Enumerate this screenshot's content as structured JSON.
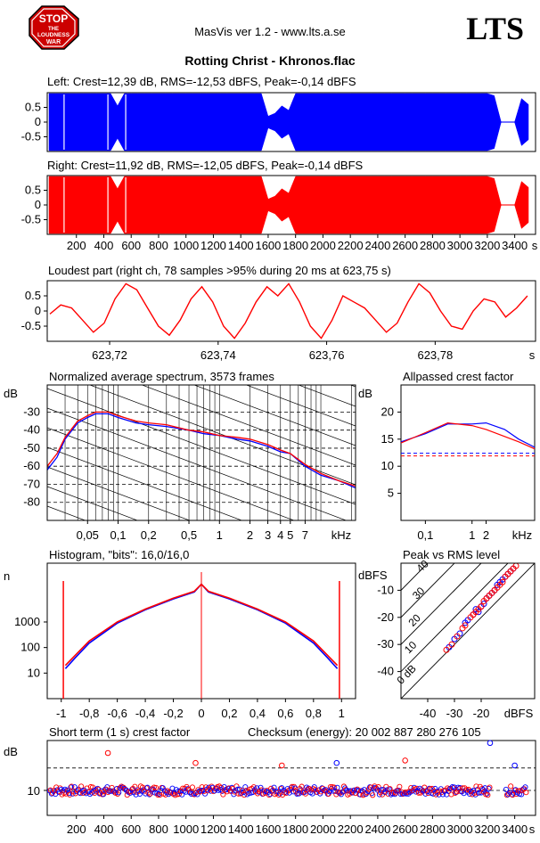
{
  "header": {
    "app_title": "MasVis ver 1.2 - www.lts.a.se",
    "brand": "LTS",
    "track_title": "Rotting Christ - Khronos.flac",
    "logo": {
      "icon": "stop-loudness-war-sign",
      "text": [
        "STOP",
        "THE",
        "LOUDNESS",
        "WAR"
      ],
      "color": "#cc0000"
    }
  },
  "colors": {
    "left": "#0000ff",
    "right": "#ff0000",
    "axis": "#000000",
    "grid": "#000000"
  },
  "chart_data": [
    {
      "id": "left-waveform",
      "type": "area",
      "title": "Left: Crest=12,39 dB, RMS=-12,53 dBFS, Peak=-0,14 dBFS",
      "ytick_labels": [
        "0.5",
        "0",
        "-0.5"
      ],
      "yticks": [
        0.5,
        0,
        -0.5
      ],
      "ylim": [
        -1,
        1
      ],
      "xlim": [
        0,
        3500
      ],
      "color": "#0000ff",
      "envelope": {
        "x": [
          0,
          50,
          100,
          150,
          200,
          250,
          300,
          350,
          400,
          450,
          500,
          550,
          600,
          650,
          700,
          750,
          800,
          850,
          900,
          950,
          1000,
          1050,
          1100,
          1150,
          1200,
          1250,
          1300,
          1350,
          1400,
          1450,
          1500,
          1550,
          1600,
          1650,
          1700,
          1750,
          1800,
          1850,
          1900,
          1950,
          2000,
          2050,
          2100,
          2150,
          2200,
          2250,
          2300,
          2350,
          2400,
          2450,
          2500,
          2550,
          2600,
          2650,
          2700,
          2750,
          2800,
          2850,
          2900,
          2950,
          3000,
          3050,
          3100,
          3150,
          3200,
          3250,
          3300,
          3350,
          3400,
          3450,
          3500
        ],
        "peak": [
          0.97,
          0.97,
          0.97,
          0.97,
          0.97,
          0.97,
          0.97,
          0.97,
          0.97,
          0.97,
          0.55,
          0.97,
          0.97,
          0.97,
          0.97,
          0.97,
          0.97,
          0.97,
          0.97,
          0.97,
          0.97,
          0.97,
          0.97,
          0.97,
          0.97,
          0.97,
          0.97,
          0.97,
          0.97,
          0.97,
          0.97,
          0.97,
          0.2,
          0.3,
          0.55,
          0.4,
          0.97,
          0.97,
          0.97,
          0.97,
          0.97,
          0.97,
          0.97,
          0.97,
          0.97,
          0.97,
          0.97,
          0.97,
          0.97,
          0.97,
          0.97,
          0.97,
          0.97,
          0.97,
          0.97,
          0.97,
          0.97,
          0.97,
          0.97,
          0.97,
          0.97,
          0.97,
          0.97,
          0.97,
          0.97,
          0.9,
          0.01,
          0.01,
          0.01,
          0.8,
          0.6
        ]
      }
    },
    {
      "id": "right-waveform",
      "type": "area",
      "title": "Right: Crest=11,92 dB, RMS=-12,05 dBFS, Peak=-0,14 dBFS",
      "ytick_labels": [
        "0.5",
        "0",
        "-0.5"
      ],
      "yticks": [
        0.5,
        0,
        -0.5
      ],
      "ylim": [
        -1,
        1
      ],
      "xlim": [
        0,
        3500
      ],
      "xticks": [
        200,
        400,
        600,
        800,
        1000,
        1200,
        1400,
        1600,
        1800,
        2000,
        2200,
        2400,
        2600,
        2800,
        3000,
        3200,
        3400
      ],
      "xtick_labels": [
        "200",
        "400",
        "600",
        "800",
        "1000",
        "1200",
        "1400",
        "1600",
        "1800",
        "2000",
        "2200",
        "2400",
        "2600",
        "2800",
        "3000",
        "3200",
        "3400"
      ],
      "xlabel": "s",
      "color": "#ff0000",
      "envelope": {
        "x": [
          0,
          50,
          100,
          150,
          200,
          250,
          300,
          350,
          400,
          450,
          500,
          550,
          600,
          650,
          700,
          750,
          800,
          850,
          900,
          950,
          1000,
          1050,
          1100,
          1150,
          1200,
          1250,
          1300,
          1350,
          1400,
          1450,
          1500,
          1550,
          1600,
          1650,
          1700,
          1750,
          1800,
          1850,
          1900,
          1950,
          2000,
          2050,
          2100,
          2150,
          2200,
          2250,
          2300,
          2350,
          2400,
          2450,
          2500,
          2550,
          2600,
          2650,
          2700,
          2750,
          2800,
          2850,
          2900,
          2950,
          3000,
          3050,
          3100,
          3150,
          3200,
          3250,
          3300,
          3350,
          3400,
          3450,
          3500
        ],
        "peak": [
          0.97,
          0.97,
          0.97,
          0.97,
          0.97,
          0.97,
          0.97,
          0.97,
          0.97,
          0.97,
          0.55,
          0.97,
          0.97,
          0.97,
          0.97,
          0.97,
          0.97,
          0.97,
          0.97,
          0.97,
          0.97,
          0.97,
          0.97,
          0.97,
          0.97,
          0.97,
          0.97,
          0.97,
          0.97,
          0.97,
          0.97,
          0.97,
          0.2,
          0.3,
          0.55,
          0.4,
          0.97,
          0.97,
          0.97,
          0.97,
          0.97,
          0.97,
          0.97,
          0.97,
          0.97,
          0.97,
          0.97,
          0.97,
          0.97,
          0.97,
          0.97,
          0.97,
          0.97,
          0.97,
          0.97,
          0.97,
          0.97,
          0.97,
          0.97,
          0.97,
          0.97,
          0.97,
          0.97,
          0.97,
          0.97,
          0.9,
          0.01,
          0.01,
          0.01,
          0.8,
          0.6
        ]
      }
    },
    {
      "id": "loudest-part",
      "type": "line",
      "title": "Loudest part (right ch, 78 samples >95% during 20 ms at 623,75 s)",
      "ytick_labels": [
        "0.5",
        "0",
        "-0.5"
      ],
      "yticks": [
        0.5,
        0,
        -0.5
      ],
      "ylim": [
        -1,
        1
      ],
      "xlim": [
        623.7085,
        623.7985
      ],
      "xticks": [
        623.72,
        623.74,
        623.76,
        623.78
      ],
      "xtick_labels": [
        "623,72",
        "623,74",
        "623,76",
        "623,78"
      ],
      "xlabel": "s",
      "color": "#ff0000",
      "x": [
        623.709,
        623.711,
        623.713,
        623.715,
        623.717,
        623.719,
        623.721,
        623.723,
        623.725,
        623.727,
        623.729,
        623.731,
        623.733,
        623.735,
        623.737,
        623.739,
        623.741,
        623.743,
        623.745,
        623.747,
        623.749,
        623.751,
        623.753,
        623.755,
        623.757,
        623.759,
        623.761,
        623.763,
        623.765,
        623.767,
        623.769,
        623.771,
        623.773,
        623.775,
        623.777,
        623.779,
        623.781,
        623.783,
        623.785,
        623.787,
        623.789,
        623.791,
        623.793,
        623.795,
        623.797
      ],
      "y": [
        -0.1,
        0.2,
        0.1,
        -0.3,
        -0.7,
        -0.4,
        0.4,
        0.9,
        0.7,
        0.1,
        -0.5,
        -0.8,
        -0.3,
        0.4,
        0.8,
        0.3,
        -0.5,
        -0.9,
        -0.4,
        0.3,
        0.8,
        0.5,
        0.9,
        0.3,
        -0.5,
        -0.9,
        -0.3,
        0.5,
        0.3,
        0.1,
        -0.3,
        -0.7,
        -0.4,
        0.3,
        0.9,
        0.6,
        0.0,
        -0.5,
        -0.6,
        0.0,
        0.4,
        0.3,
        -0.2,
        0.1,
        0.5
      ]
    },
    {
      "id": "normalized-spectrum",
      "type": "line",
      "title": "Normalized average spectrum, 3573 frames",
      "ylabel": "dB",
      "xlabel": "kHz",
      "ylim": [
        -90,
        -15
      ],
      "yticks": [
        -30,
        -40,
        -50,
        -60,
        -70,
        -80
      ],
      "ytick_labels": [
        "-30",
        "-40",
        "-50",
        "-60",
        "-70",
        "-80"
      ],
      "xscale": "log",
      "xlim": [
        0.02,
        22
      ],
      "xticks": [
        0.05,
        0.1,
        0.2,
        0.5,
        1,
        2,
        3,
        4,
        5,
        7
      ],
      "xtick_labels": [
        "0,05",
        "0,1",
        "0,2",
        "0,5",
        "1",
        "2",
        "3",
        "4",
        "5",
        "7"
      ],
      "grid": true,
      "series": [
        {
          "color": "#0000ff",
          "x": [
            0.02,
            0.025,
            0.03,
            0.04,
            0.05,
            0.06,
            0.08,
            0.1,
            0.15,
            0.2,
            0.3,
            0.5,
            0.7,
            1,
            1.5,
            2,
            3,
            4,
            5,
            7,
            10,
            15,
            22
          ],
          "y": [
            -62,
            -55,
            -45,
            -36,
            -33,
            -31,
            -31,
            -33,
            -36,
            -37,
            -38,
            -40,
            -42,
            -43,
            -45,
            -46,
            -49,
            -52,
            -53,
            -60,
            -65,
            -68,
            -72
          ]
        },
        {
          "color": "#ff0000",
          "x": [
            0.02,
            0.025,
            0.03,
            0.04,
            0.05,
            0.06,
            0.08,
            0.1,
            0.15,
            0.2,
            0.3,
            0.5,
            0.7,
            1,
            1.5,
            2,
            3,
            4,
            5,
            7,
            10,
            15,
            22
          ],
          "y": [
            -60,
            -53,
            -44,
            -35,
            -32,
            -30,
            -30,
            -32,
            -35,
            -36,
            -37,
            -40,
            -41,
            -43,
            -44,
            -45,
            -48,
            -51,
            -53,
            -59,
            -64,
            -68,
            -71
          ]
        }
      ]
    },
    {
      "id": "allpassed-crest",
      "type": "line",
      "title": "Allpassed crest factor",
      "ylabel": "dB",
      "xlabel": "kHz",
      "ylim": [
        0,
        25
      ],
      "yticks": [
        5,
        10,
        15,
        20
      ],
      "ytick_labels": [
        "5",
        "10",
        "15",
        "20"
      ],
      "xscale": "log",
      "xlim": [
        0.03,
        22
      ],
      "xticks": [
        0.1,
        1,
        2
      ],
      "xtick_labels": [
        "0,1",
        "1",
        "2"
      ],
      "reference_lines": [
        {
          "y": 12.4,
          "color": "#0000ff"
        },
        {
          "y": 11.9,
          "color": "#ff0000"
        }
      ],
      "series": [
        {
          "color": "#0000ff",
          "x": [
            0.03,
            0.1,
            0.3,
            1,
            2,
            5,
            10,
            22
          ],
          "y": [
            14.5,
            16,
            17.8,
            17.8,
            18,
            16.8,
            15,
            13.5
          ]
        },
        {
          "color": "#ff0000",
          "x": [
            0.03,
            0.1,
            0.3,
            1,
            2,
            5,
            10,
            22
          ],
          "y": [
            14.3,
            16.2,
            18,
            17.5,
            16.8,
            15.5,
            14.5,
            13.2
          ]
        }
      ]
    },
    {
      "id": "histogram",
      "type": "line",
      "title": "Histogram, \"bits\": 16,0/16,0",
      "ylabel": "n",
      "yscale": "log",
      "ylim": [
        1,
        200000
      ],
      "yticks": [
        10,
        100,
        1000
      ],
      "ytick_labels": [
        "10",
        "100",
        "1000"
      ],
      "xlim": [
        -1.1,
        1.1
      ],
      "xticks": [
        -1,
        -0.8,
        -0.6,
        -0.4,
        -0.2,
        0,
        0.2,
        0.4,
        0.6,
        0.8,
        1
      ],
      "xtick_labels": [
        "-1",
        "-0,8",
        "-0,6",
        "-0,4",
        "-0,2",
        "0",
        "0,2",
        "0,4",
        "0,6",
        "0,8",
        "1"
      ],
      "series": [
        {
          "color": "#0000ff",
          "x": [
            -0.97,
            -0.9,
            -0.8,
            -0.6,
            -0.4,
            -0.2,
            -0.05,
            0,
            0.05,
            0.2,
            0.4,
            0.6,
            0.8,
            0.9,
            0.97
          ],
          "y": [
            15,
            40,
            150,
            900,
            3000,
            8000,
            15000,
            30000,
            15000,
            8000,
            3000,
            900,
            150,
            40,
            15
          ]
        },
        {
          "color": "#ff0000",
          "x": [
            -0.97,
            -0.9,
            -0.8,
            -0.6,
            -0.4,
            -0.2,
            -0.05,
            0,
            0.05,
            0.2,
            0.4,
            0.6,
            0.8,
            0.9,
            0.97
          ],
          "y": [
            20,
            50,
            180,
            1000,
            3200,
            8500,
            16000,
            30000,
            16000,
            8500,
            3200,
            1000,
            180,
            50,
            20
          ]
        }
      ],
      "spikes": [
        {
          "x": -0.985,
          "color": "#ff0000"
        },
        {
          "x": 0.985,
          "color": "#ff0000"
        }
      ]
    },
    {
      "id": "peak-vs-rms",
      "type": "scatter",
      "title": "Peak vs RMS level",
      "ylabel": "dBFS",
      "xlabel": "dBFS",
      "xlim": [
        -50,
        0
      ],
      "ylim": [
        -50,
        0
      ],
      "xticks": [
        -40,
        -30,
        -20
      ],
      "xtick_labels": [
        "-40",
        "-30",
        "-20"
      ],
      "yticks": [
        -10,
        -20,
        -30,
        -40
      ],
      "ytick_labels": [
        "-10",
        "-20",
        "-30",
        "-40"
      ],
      "diagonals": [
        {
          "label": "0 dB",
          "offset": 0
        },
        {
          "label": "10",
          "offset": 10
        },
        {
          "label": "20",
          "offset": 20
        },
        {
          "label": "30",
          "offset": 30
        },
        {
          "label": "40",
          "offset": 40
        }
      ],
      "series": [
        {
          "color": "#0000ff",
          "x": [
            -32,
            -30,
            -28,
            -26,
            -25,
            -23,
            -22,
            -21,
            -20,
            -19,
            -18,
            -17,
            -16,
            -15,
            -14,
            -13,
            -12,
            -11,
            -10,
            -9,
            -8
          ],
          "y": [
            -31,
            -28,
            -26,
            -22,
            -21,
            -19,
            -17,
            -18,
            -16,
            -15,
            -13,
            -12,
            -11,
            -10,
            -8,
            -7,
            -6,
            -5,
            -4,
            -3,
            -2
          ]
        },
        {
          "color": "#ff0000",
          "x": [
            -33,
            -31,
            -29,
            -27,
            -26,
            -24,
            -23,
            -22,
            -21,
            -20,
            -19,
            -18,
            -17,
            -16,
            -15,
            -14,
            -13,
            -12,
            -11,
            -10,
            -9,
            -8,
            -7
          ],
          "y": [
            -32,
            -30,
            -27,
            -24,
            -23,
            -20,
            -19,
            -18,
            -17,
            -16,
            -14,
            -13,
            -12,
            -11,
            -10,
            -9,
            -8,
            -7,
            -5,
            -4,
            -3,
            -2,
            -1
          ]
        }
      ]
    },
    {
      "id": "short-term-crest",
      "type": "scatter",
      "title": "Short term (1 s) crest factor",
      "annotation": "Checksum (energy):  20 002 887 280 276 105",
      "ylabel": "dB",
      "ylim": [
        0,
        30
      ],
      "yticks": [
        10
      ],
      "ytick_labels": [
        "10"
      ],
      "xlim": [
        0,
        3500
      ],
      "xticks": [
        200,
        400,
        600,
        800,
        1000,
        1200,
        1400,
        1600,
        1800,
        2000,
        2200,
        2400,
        2600,
        2800,
        3000,
        3200,
        3400
      ],
      "xtick_labels": [
        "200",
        "400",
        "600",
        "800",
        "1000",
        "1200",
        "1400",
        "1600",
        "1800",
        "2000",
        "2200",
        "2400",
        "2600",
        "2800",
        "3000",
        "3200",
        "3400"
      ],
      "xlabel": "s",
      "reference_lines": [
        {
          "y": 19.0
        },
        {
          "y": 10.0
        }
      ],
      "outliers": [
        {
          "x": 430,
          "y": 25,
          "color": "#ff0000"
        },
        {
          "x": 3220,
          "y": 29,
          "color": "#0000ff"
        },
        {
          "x": 2600,
          "y": 22,
          "color": "#ff0000"
        },
        {
          "x": 1070,
          "y": 21,
          "color": "#ff0000"
        },
        {
          "x": 2100,
          "y": 21,
          "color": "#0000ff"
        },
        {
          "x": 1700,
          "y": 20,
          "color": "#ff0000"
        },
        {
          "x": 3400,
          "y": 20,
          "color": "#0000ff"
        }
      ]
    }
  ]
}
